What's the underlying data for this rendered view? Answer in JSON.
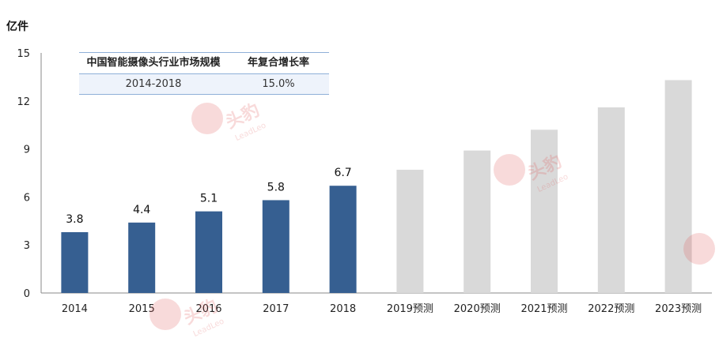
{
  "chart_data": {
    "type": "bar",
    "unit_label": "亿件",
    "categories": [
      "2014",
      "2015",
      "2016",
      "2017",
      "2018",
      "2019预测",
      "2020预测",
      "2021预测",
      "2022预测",
      "2023预测"
    ],
    "values": [
      3.8,
      4.4,
      5.1,
      5.8,
      6.7,
      7.7,
      8.9,
      10.2,
      11.6,
      13.3
    ],
    "value_labels": [
      "3.8",
      "4.4",
      "5.1",
      "5.8",
      "6.7",
      "",
      "",
      "",
      "",
      ""
    ],
    "ylim": [
      0,
      15
    ],
    "yticks": [
      "0",
      "3",
      "6",
      "9",
      "12",
      "15"
    ],
    "grid": false,
    "colors": {
      "actual": "#365f91",
      "forecast": "#d9d9d9"
    },
    "actual_count": 5
  },
  "table": {
    "header": [
      "中国智能摄像头行业市场规模",
      "年复合增长率"
    ],
    "row": [
      "2014-2018",
      "15.0%"
    ]
  },
  "watermark": {
    "text": "头豹",
    "sub": "LeadLeo"
  }
}
